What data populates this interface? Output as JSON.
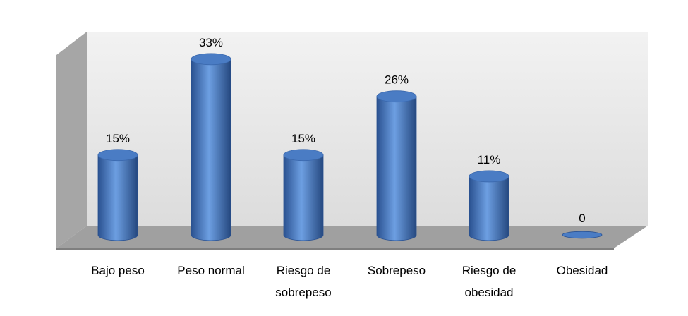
{
  "chart_data": {
    "type": "bar",
    "categories": [
      "Bajo peso",
      "Peso normal",
      "Riesgo de sobrepeso",
      "Sobrepeso",
      "Riesgo de obesidad",
      "Obesidad"
    ],
    "values": [
      15,
      33,
      15,
      26,
      11,
      0
    ],
    "value_labels": [
      "15%",
      "33%",
      "15%",
      "26%",
      "11%",
      "0"
    ],
    "color": "#4a7cc4"
  }
}
